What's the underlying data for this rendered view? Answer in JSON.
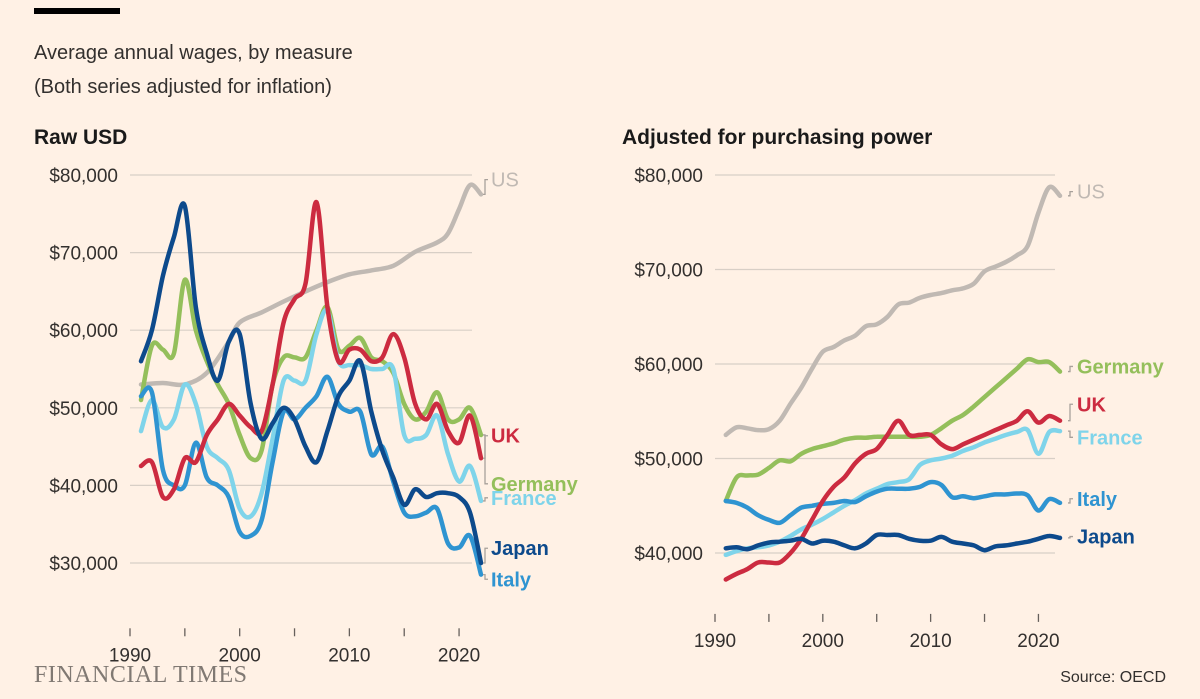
{
  "header": {
    "title_line1": "Average annual wages, by measure",
    "title_line2": "(Both series adjusted for inflation)"
  },
  "footer": {
    "logo": "FINANCIAL TIMES",
    "source": "Source: OECD"
  },
  "colors": {
    "US": "#c0b9b3",
    "UK": "#cc2b40",
    "Germany": "#94bf5b",
    "France": "#7fd4ea",
    "Japan": "#0d4a8c",
    "Italy": "#2f94d1",
    "grid": "#d8cfc6",
    "tick": "#66605c"
  },
  "chart_data": [
    {
      "type": "line",
      "title": "Raw USD",
      "xlabel": "",
      "ylabel": "",
      "xlim": [
        1990,
        2022
      ],
      "ylim": [
        27000,
        81000
      ],
      "xticks": [
        1990,
        1995,
        2000,
        2005,
        2010,
        2015,
        2020
      ],
      "xtick_labels": [
        "1990",
        "2000",
        "2010",
        "2020"
      ],
      "yticks": [
        30000,
        40000,
        50000,
        60000,
        70000,
        80000
      ],
      "ytick_labels": [
        "$30,000",
        "$40,000",
        "$50,000",
        "$60,000",
        "$70,000",
        "$80,000"
      ],
      "series": [
        {
          "name": "US",
          "label": "US",
          "label_y": 78500,
          "x": [
            1991,
            1993,
            1995,
            1997,
            1999,
            2000,
            2002,
            2004,
            2006,
            2008,
            2010,
            2012,
            2014,
            2016,
            2018,
            2019,
            2020,
            2021,
            2022
          ],
          "values": [
            53000,
            53200,
            53000,
            54500,
            58500,
            61000,
            62300,
            63700,
            65000,
            66200,
            67200,
            67700,
            68300,
            70100,
            71300,
            72500,
            75600,
            78700,
            77500
          ]
        },
        {
          "name": "UK",
          "label": "UK",
          "label_y": 45500,
          "x": [
            1991,
            1992,
            1993,
            1994,
            1995,
            1996,
            1997,
            1998,
            1999,
            2000,
            2001,
            2002,
            2003,
            2004,
            2005,
            2006,
            2007,
            2008,
            2009,
            2010,
            2011,
            2012,
            2013,
            2014,
            2015,
            2016,
            2017,
            2018,
            2019,
            2020,
            2021,
            2022
          ],
          "values": [
            42500,
            43000,
            38500,
            39500,
            43500,
            43000,
            46500,
            48500,
            50500,
            49000,
            47500,
            47000,
            53000,
            61000,
            64000,
            66000,
            76500,
            63000,
            56000,
            57500,
            57500,
            56000,
            56500,
            59500,
            56500,
            50500,
            48500,
            50500,
            47000,
            45500,
            49000,
            43500
          ]
        },
        {
          "name": "Germany",
          "label": "Germany",
          "label_y": 39300,
          "x": [
            1991,
            1992,
            1993,
            1994,
            1995,
            1996,
            1997,
            1998,
            1999,
            2000,
            2001,
            2002,
            2003,
            2004,
            2005,
            2006,
            2007,
            2008,
            2009,
            2010,
            2011,
            2012,
            2013,
            2014,
            2015,
            2016,
            2017,
            2018,
            2019,
            2020,
            2021,
            2022
          ],
          "values": [
            51000,
            58000,
            57500,
            57000,
            66500,
            60000,
            56000,
            53000,
            50500,
            46500,
            43500,
            44500,
            53000,
            56500,
            56500,
            56500,
            60000,
            63000,
            57500,
            58000,
            59000,
            56500,
            56000,
            54500,
            50500,
            48500,
            49500,
            52000,
            48500,
            48500,
            50000,
            46500
          ]
        },
        {
          "name": "France",
          "label": "France",
          "label_y": 37500,
          "x": [
            1991,
            1992,
            1993,
            1994,
            1995,
            1996,
            1997,
            1998,
            1999,
            2000,
            2001,
            2002,
            2003,
            2004,
            2005,
            2006,
            2007,
            2008,
            2009,
            2010,
            2011,
            2012,
            2013,
            2014,
            2015,
            2016,
            2017,
            2018,
            2019,
            2020,
            2021,
            2022
          ],
          "values": [
            47000,
            51000,
            47500,
            48500,
            53000,
            50500,
            45000,
            43500,
            42000,
            37000,
            36000,
            39000,
            46000,
            53500,
            53500,
            53500,
            59500,
            62500,
            56000,
            55500,
            55500,
            55000,
            55000,
            55000,
            46500,
            46000,
            46500,
            49000,
            44000,
            40500,
            42500,
            38000
          ]
        },
        {
          "name": "Japan",
          "label": "Japan",
          "label_y": 31000,
          "x": [
            1991,
            1992,
            1993,
            1994,
            1995,
            1996,
            1997,
            1998,
            1999,
            2000,
            2001,
            2002,
            2003,
            2004,
            2005,
            2006,
            2007,
            2008,
            2009,
            2010,
            2011,
            2012,
            2013,
            2014,
            2015,
            2016,
            2017,
            2018,
            2019,
            2020,
            2021,
            2022
          ],
          "values": [
            56000,
            60000,
            67000,
            72000,
            76000,
            63000,
            57000,
            53500,
            58500,
            59500,
            50500,
            46000,
            48000,
            50000,
            48500,
            45000,
            43000,
            47000,
            51500,
            53500,
            56000,
            49500,
            44500,
            41000,
            37500,
            39500,
            38500,
            39000,
            39000,
            38500,
            36500,
            30000
          ]
        },
        {
          "name": "Italy",
          "label": "Italy",
          "label_y": 27000,
          "x": [
            1991,
            1992,
            1993,
            1994,
            1995,
            1996,
            1997,
            1998,
            1999,
            2000,
            2001,
            2002,
            2003,
            2004,
            2005,
            2006,
            2007,
            2008,
            2009,
            2010,
            2011,
            2012,
            2013,
            2014,
            2015,
            2016,
            2017,
            2018,
            2019,
            2020,
            2021,
            2022
          ],
          "values": [
            51500,
            52000,
            42000,
            40000,
            40000,
            45500,
            41000,
            40000,
            38500,
            34000,
            33500,
            35500,
            43000,
            49500,
            48500,
            50000,
            51500,
            54000,
            50500,
            49500,
            49500,
            44000,
            45000,
            40500,
            36500,
            36000,
            36500,
            37000,
            32500,
            32000,
            33500,
            28500
          ]
        }
      ]
    },
    {
      "type": "line",
      "title": "Adjusted for purchasing power",
      "xlabel": "",
      "ylabel": "",
      "xlim": [
        1990,
        2022
      ],
      "ylim": [
        38000,
        81000
      ],
      "xticks": [
        1990,
        1995,
        2000,
        2005,
        2010,
        2015,
        2020
      ],
      "xtick_labels": [
        "1990",
        "2000",
        "2010",
        "2020"
      ],
      "yticks": [
        40000,
        50000,
        60000,
        70000,
        80000
      ],
      "ytick_labels": [
        "$40,000",
        "$50,000",
        "$60,000",
        "$70,000",
        "$80,000"
      ],
      "series": [
        {
          "name": "US",
          "label": "US",
          "label_y": 77500,
          "x": [
            1991,
            1992,
            1993,
            1994,
            1995,
            1996,
            1997,
            1998,
            1999,
            2000,
            2001,
            2002,
            2003,
            2004,
            2005,
            2006,
            2007,
            2008,
            2009,
            2010,
            2011,
            2012,
            2013,
            2014,
            2015,
            2016,
            2017,
            2018,
            2019,
            2020,
            2021,
            2022
          ],
          "values": [
            52500,
            53300,
            53200,
            53000,
            53100,
            54000,
            55800,
            57500,
            59500,
            61300,
            61800,
            62500,
            63000,
            64000,
            64200,
            65000,
            66300,
            66500,
            67000,
            67300,
            67500,
            67800,
            68000,
            68500,
            69800,
            70300,
            70800,
            71500,
            72500,
            76000,
            78700,
            77800
          ]
        },
        {
          "name": "Germany",
          "label": "Germany",
          "label_y": 59000,
          "x": [
            1991,
            1992,
            1993,
            1994,
            1995,
            1996,
            1997,
            1998,
            1999,
            2000,
            2001,
            2002,
            2003,
            2004,
            2005,
            2006,
            2007,
            2008,
            2009,
            2010,
            2011,
            2012,
            2013,
            2014,
            2015,
            2016,
            2017,
            2018,
            2019,
            2020,
            2021,
            2022
          ],
          "values": [
            45500,
            48000,
            48200,
            48300,
            49000,
            49800,
            49700,
            50500,
            51000,
            51300,
            51600,
            52000,
            52200,
            52200,
            52300,
            52300,
            52300,
            52300,
            52300,
            52500,
            53200,
            54000,
            54600,
            55500,
            56500,
            57500,
            58500,
            59500,
            60500,
            60200,
            60200,
            59200
          ]
        },
        {
          "name": "UK",
          "label": "UK",
          "label_y": 55000,
          "x": [
            1991,
            1992,
            1993,
            1994,
            1995,
            1996,
            1997,
            1998,
            1999,
            2000,
            2001,
            2002,
            2003,
            2004,
            2005,
            2006,
            2007,
            2008,
            2009,
            2010,
            2011,
            2012,
            2013,
            2014,
            2015,
            2016,
            2017,
            2018,
            2019,
            2020,
            2021,
            2022
          ],
          "values": [
            37200,
            37800,
            38300,
            39000,
            39000,
            39000,
            40000,
            41500,
            43500,
            45500,
            47000,
            48000,
            49500,
            50500,
            51000,
            52500,
            54000,
            52500,
            52500,
            52500,
            51500,
            51000,
            51500,
            52000,
            52500,
            53000,
            53500,
            54000,
            55000,
            53800,
            54500,
            54000
          ]
        },
        {
          "name": "France",
          "label": "France",
          "label_y": 51500,
          "x": [
            1991,
            1992,
            1993,
            1994,
            1995,
            1996,
            1997,
            1998,
            1999,
            2000,
            2001,
            2002,
            2003,
            2004,
            2005,
            2006,
            2007,
            2008,
            2009,
            2010,
            2011,
            2012,
            2013,
            2014,
            2015,
            2016,
            2017,
            2018,
            2019,
            2020,
            2021,
            2022
          ],
          "values": [
            39800,
            40200,
            40500,
            40600,
            40800,
            41200,
            41800,
            42500,
            43000,
            43600,
            44300,
            45000,
            45600,
            46300,
            46800,
            47300,
            47500,
            47800,
            49300,
            49800,
            50000,
            50300,
            50800,
            51200,
            51700,
            52100,
            52500,
            52800,
            53000,
            50500,
            52800,
            52900
          ]
        },
        {
          "name": "Italy",
          "label": "Italy",
          "label_y": 45000,
          "x": [
            1991,
            1992,
            1993,
            1994,
            1995,
            1996,
            1997,
            1998,
            1999,
            2000,
            2001,
            2002,
            2003,
            2004,
            2005,
            2006,
            2007,
            2008,
            2009,
            2010,
            2011,
            2012,
            2013,
            2014,
            2015,
            2016,
            2017,
            2018,
            2019,
            2020,
            2021,
            2022
          ],
          "values": [
            45500,
            45300,
            44800,
            44000,
            43500,
            43200,
            44000,
            44800,
            45000,
            45200,
            45300,
            45500,
            45400,
            46000,
            46500,
            46800,
            46800,
            46800,
            47000,
            47500,
            47200,
            45900,
            46000,
            45800,
            46000,
            46200,
            46200,
            46300,
            46100,
            44500,
            45700,
            45300
          ]
        },
        {
          "name": "Japan",
          "label": "Japan",
          "label_y": 41000,
          "x": [
            1991,
            1992,
            1993,
            1994,
            1995,
            1996,
            1997,
            1998,
            1999,
            2000,
            2001,
            2002,
            2003,
            2004,
            2005,
            2006,
            2007,
            2008,
            2009,
            2010,
            2011,
            2012,
            2013,
            2014,
            2015,
            2016,
            2017,
            2018,
            2019,
            2020,
            2021,
            2022
          ],
          "values": [
            40500,
            40600,
            40400,
            40800,
            41100,
            41200,
            41300,
            41500,
            41000,
            41300,
            41200,
            40800,
            40500,
            41000,
            41900,
            41900,
            41900,
            41500,
            41300,
            41300,
            41700,
            41200,
            41000,
            40800,
            40300,
            40700,
            40800,
            41000,
            41200,
            41500,
            41800,
            41600
          ]
        }
      ]
    }
  ]
}
